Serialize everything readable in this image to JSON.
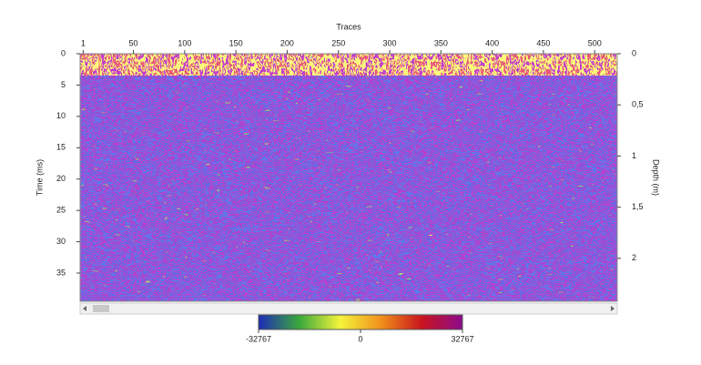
{
  "chart_data": {
    "type": "heatmap",
    "x_label": "Traces",
    "y_label": "Time (ms)",
    "y2_label": "Depth (m)",
    "xlim": [
      -2,
      522
    ],
    "xticks": [
      1,
      50,
      100,
      150,
      200,
      250,
      300,
      350,
      400,
      450,
      500
    ],
    "ylim": [
      0,
      39.5
    ],
    "yticks": [
      0,
      5,
      10,
      15,
      20,
      25,
      30,
      35
    ],
    "y2lim": [
      0,
      2.42
    ],
    "y2ticks": [
      0,
      {
        "value": 0.5,
        "label": "0,5"
      },
      1,
      {
        "value": 1.5,
        "label": "1,5"
      },
      2
    ],
    "colorbar": {
      "lim": [
        -32767,
        32767
      ],
      "ticks": [
        -32767,
        0,
        32767
      ],
      "colors": [
        "#1f2bb8",
        "#3aa83c",
        "#f4f43c",
        "#f0901c",
        "#c8141e",
        "#8c0c8c"
      ]
    }
  }
}
